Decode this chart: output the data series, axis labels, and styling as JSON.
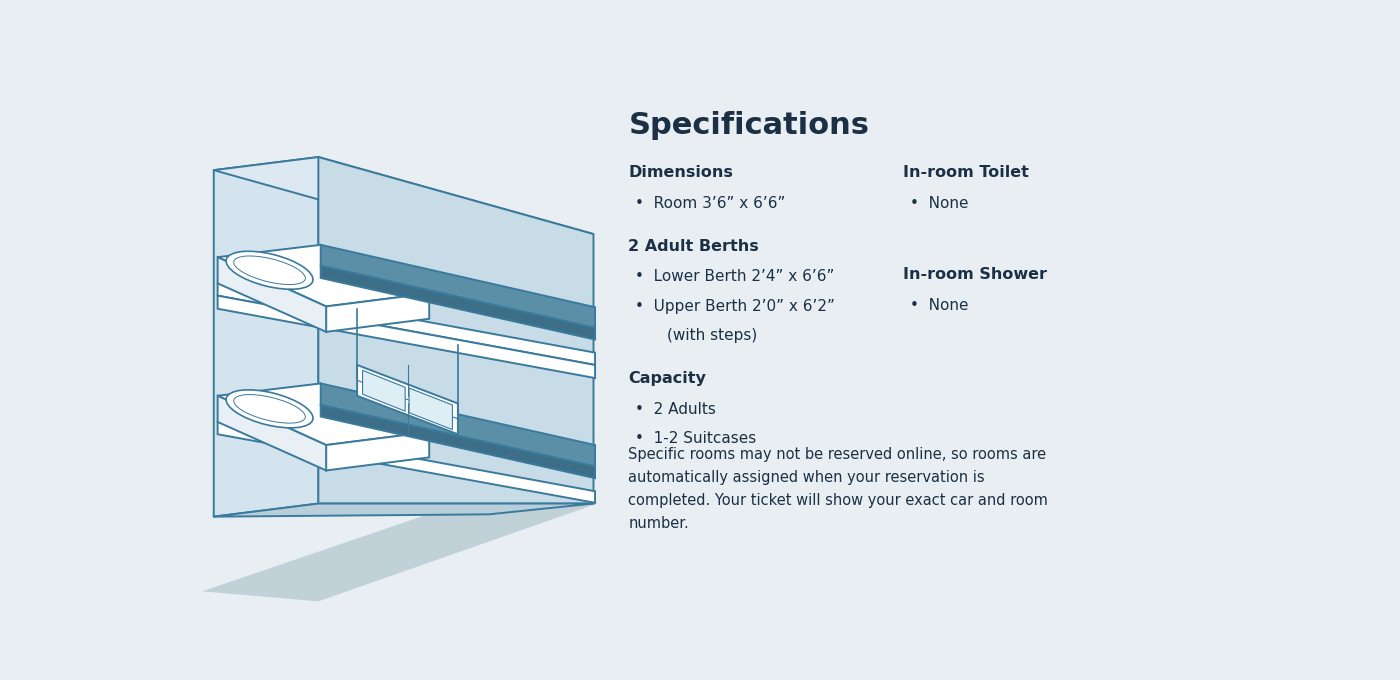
{
  "title": "Specifications",
  "background_color": "#e8eef2",
  "text_color": "#1b2f45",
  "line_color": "#3a7a9c",
  "wall_color": "#d4e4ee",
  "wall_color2": "#c8dce8",
  "ceiling_color": "#dce8f2",
  "bed_top_color": "#5b8fa8",
  "bed_side_color": "#3d6e87",
  "bed_frame_color": "#ffffff",
  "pillow_color": "#ffffff",
  "floor_color": "#b8ceda",
  "floor_shadow_color": "#a8bec8",
  "step_color": "#d8e8f0",
  "sections": [
    {
      "header": "Dimensions",
      "items": [
        "Room 3’6” x 6’6”"
      ]
    },
    {
      "header": "2 Adult Berths",
      "items": [
        "Lower Berth 2’4” x 6’6”",
        "Upper Berth 2’0” x 6’2”\n(with steps)"
      ]
    },
    {
      "header": "Capacity",
      "items": [
        "2 Adults",
        "1-2 Suitcases"
      ]
    }
  ],
  "right_sections": [
    {
      "header": "In-room Toilet",
      "items": [
        "None"
      ]
    },
    {
      "header": "In-room Shower",
      "items": [
        "None"
      ]
    }
  ],
  "footnote": "Specific rooms may not be reserved online, so rooms are\nautomatically assigned when your reservation is\ncompleted. Your ticket will show your exact car and room\nnumber."
}
